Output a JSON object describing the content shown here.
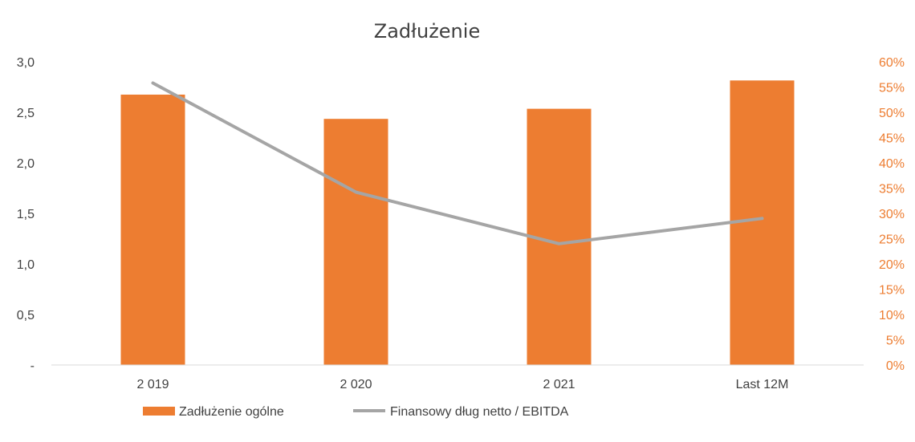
{
  "chart_data": {
    "type": "bar",
    "title": "Zadłużenie",
    "categories": [
      "2 019",
      "2 020",
      "2 021",
      "Last 12M"
    ],
    "series": [
      {
        "name": "Zadłużenie ogólne",
        "type": "bar",
        "axis": "right",
        "color": "#ED7D31",
        "values": [
          0.535,
          0.487,
          0.507,
          0.563
        ]
      },
      {
        "name": "Finansowy dług netto / EBITDA",
        "type": "line",
        "axis": "left",
        "color": "#A5A5A5",
        "values": [
          2.79,
          1.71,
          1.2,
          1.45
        ]
      }
    ],
    "left_axis": {
      "ylim": [
        0,
        3.0
      ],
      "tick_labels": [
        "-",
        "0,5",
        "1,0",
        "1,5",
        "2,0",
        "2,5",
        "3,0"
      ]
    },
    "right_axis": {
      "ylim": [
        0,
        0.6
      ],
      "tick_labels": [
        "0%",
        "5%",
        "10%",
        "15%",
        "20%",
        "25%",
        "30%",
        "35%",
        "40%",
        "45%",
        "50%",
        "55%",
        "60%"
      ],
      "color": "#ED7D31"
    },
    "grid": false,
    "legend_position": "bottom"
  }
}
